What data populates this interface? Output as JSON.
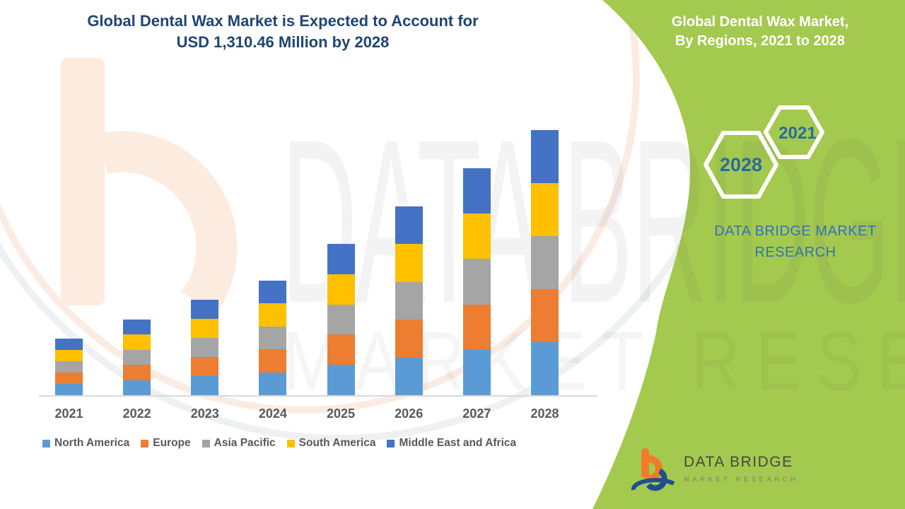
{
  "page": {
    "title_line1": "Global Dental Wax Market is Expected to Account for",
    "title_line2": "USD 1,310.46 Million by 2028"
  },
  "side_panel": {
    "title_line1": "Global Dental Wax Market,",
    "title_line2": "By Regions, 2021 to 2028",
    "hexagon_start_year": "2021",
    "hexagon_end_year": "2028",
    "brand_line1": "DATA BRIDGE MARKET",
    "brand_line2": "RESEARCH",
    "panel_color": "#a4c94f",
    "brand_text_color": "#2e75b6",
    "hexagon_text_color": "#2a6b9f"
  },
  "chart_data": {
    "type": "bar",
    "stacked": true,
    "title": "Global Dental Wax Market, By Regions, 2021 to 2028",
    "unit": "USD Million",
    "categories": [
      "2021",
      "2022",
      "2023",
      "2024",
      "2025",
      "2026",
      "2027",
      "2028"
    ],
    "series": [
      {
        "name": "North America",
        "color": "#5b9bd5",
        "values": [
          56,
          74.8,
          94.4,
          113.2,
          149.6,
          186.6,
          224.4,
          262.1
        ]
      },
      {
        "name": "Europe",
        "color": "#ed7d31",
        "values": [
          56,
          74.8,
          94.4,
          113.2,
          149.6,
          186.6,
          224.4,
          262.1
        ]
      },
      {
        "name": "Asia Pacific",
        "color": "#a5a5a5",
        "values": [
          56,
          74.8,
          94.4,
          113.2,
          149.6,
          186.6,
          224.4,
          262.1
        ]
      },
      {
        "name": "South America",
        "color": "#ffc000",
        "values": [
          56,
          74.8,
          94.4,
          113.2,
          149.6,
          186.6,
          224.4,
          262.1
        ]
      },
      {
        "name": "Middle East and Africa",
        "color": "#4472c4",
        "values": [
          56,
          74.8,
          94.4,
          113.2,
          149.6,
          186.6,
          224.4,
          262.1
        ]
      }
    ],
    "totals": [
      280,
      374,
      472,
      566,
      748,
      933,
      1122,
      1310.46
    ],
    "xlabel": "",
    "ylabel": "",
    "legend_position": "bottom",
    "grid": false
  },
  "watermarks": {
    "brand": "DATA BRIDGE",
    "sub": "MARKET RESEARCH"
  },
  "footer_logo": {
    "name": "DATA BRIDGE",
    "tagline": "MARKET RESEARCH"
  }
}
